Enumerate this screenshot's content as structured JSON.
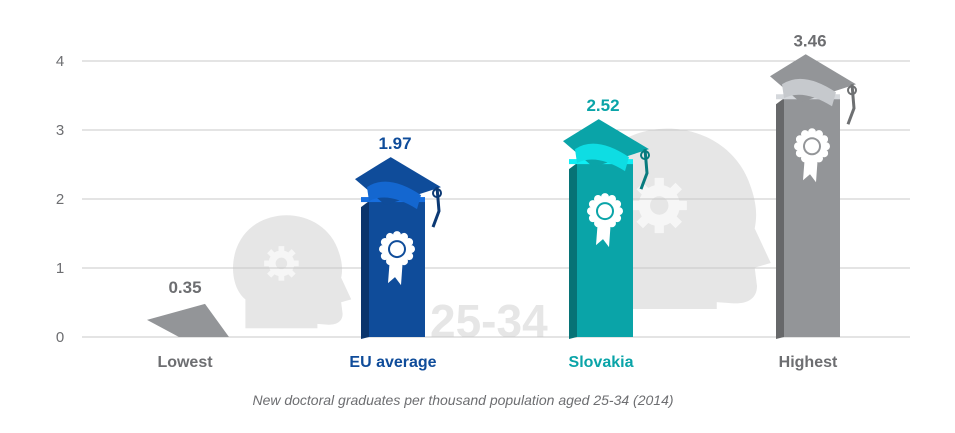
{
  "chart_data": {
    "type": "bar",
    "categories": [
      "Lowest",
      "EU average",
      "Slovakia",
      "Highest"
    ],
    "values": [
      0.35,
      1.97,
      2.52,
      3.46
    ],
    "value_labels": [
      "0.35",
      "1.97",
      "2.52",
      "3.46"
    ],
    "yticks": [
      "0",
      "1",
      "2",
      "3",
      "4"
    ],
    "ylim": [
      0,
      4
    ],
    "grid": true,
    "xlabel": "New doctoral graduates per thousand population aged 25-34 (2014)",
    "ylabel": "",
    "title": "",
    "background_watermark": "25-34",
    "colors": {
      "Lowest": "#939598",
      "EU average": "#0f4c9a",
      "Slovakia": "#0aa4a8",
      "Highest": "#939598",
      "axis_text": "#6d6e71",
      "gridline": "#c8c8c8",
      "watermark": "#e6e6e6"
    },
    "label_colors": {
      "Lowest": "#6d6e71",
      "EU average": "#0f4c9a",
      "Slovakia": "#0aa4a8",
      "Highest": "#6d6e71"
    }
  }
}
